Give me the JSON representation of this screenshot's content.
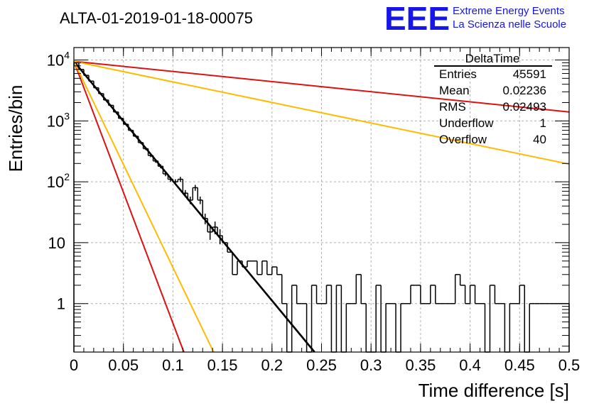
{
  "chart_data": {
    "type": "histogram",
    "title": "ALTA-01-2019-01-18-00075",
    "xlabel": "Time difference [s]",
    "ylabel": "Entries/bin",
    "xlim": [
      0,
      0.5
    ],
    "ylim": [
      0.16,
      16000
    ],
    "yscale": "log",
    "grid": true,
    "x_ticks": [
      {
        "value": 0,
        "label": "0"
      },
      {
        "value": 0.05,
        "label": "0.05"
      },
      {
        "value": 0.1,
        "label": "0.1"
      },
      {
        "value": 0.15,
        "label": "0.15"
      },
      {
        "value": 0.2,
        "label": "0.2"
      },
      {
        "value": 0.25,
        "label": "0.25"
      },
      {
        "value": 0.3,
        "label": "0.3"
      },
      {
        "value": 0.35,
        "label": "0.35"
      },
      {
        "value": 0.4,
        "label": "0.4"
      },
      {
        "value": 0.45,
        "label": "0.45"
      },
      {
        "value": 0.5,
        "label": "0.5"
      }
    ],
    "y_ticks": [
      {
        "value": 1,
        "base": "1",
        "exp": ""
      },
      {
        "value": 10,
        "base": "10",
        "exp": ""
      },
      {
        "value": 100,
        "base": "10",
        "exp": "2"
      },
      {
        "value": 1000,
        "base": "10",
        "exp": "3"
      },
      {
        "value": 10000,
        "base": "10",
        "exp": "4"
      }
    ],
    "histogram": {
      "bin_width": 0.005,
      "x_start": 0,
      "counts": [
        9000,
        7000,
        5600,
        4500,
        3500,
        2800,
        2200,
        1800,
        1400,
        1100,
        880,
        700,
        560,
        440,
        350,
        270,
        220,
        180,
        135,
        110,
        100,
        110,
        65,
        50,
        80,
        50,
        25,
        15,
        18,
        13,
        10,
        7,
        3,
        5,
        4,
        5,
        5,
        3,
        5,
        3,
        4,
        3,
        1,
        0,
        2,
        1,
        1,
        0,
        2,
        1,
        1,
        2,
        0,
        2,
        0,
        1,
        1,
        3,
        1,
        0,
        0,
        2,
        0,
        1,
        1,
        0,
        1,
        1,
        2,
        2,
        1,
        1,
        2,
        1,
        1,
        1,
        1,
        3,
        2,
        1,
        2,
        1,
        1,
        0,
        2,
        1,
        1,
        0,
        1,
        1,
        2,
        0,
        1,
        1,
        1,
        1,
        1,
        1,
        1,
        1
      ],
      "color": "#000000"
    },
    "fits": [
      {
        "type": "exponential",
        "n0": 9500,
        "x_at_floor": 0.243,
        "floor": 0.16,
        "color": "#000000",
        "width": 2.6
      },
      {
        "type": "exponential",
        "n0": 9500,
        "x_at_floor": 0.111,
        "floor": 0.16,
        "color": "#dd1111",
        "width": 2
      },
      {
        "type": "exponential",
        "n0": 9500,
        "x_at_floor": 0.141,
        "floor": 0.16,
        "color": "#ffbb00",
        "width": 2
      },
      {
        "type": "exponential",
        "n0": 9500,
        "y_at_max": 1400,
        "x_max": 0.5,
        "color": "#dd1111",
        "width": 2
      },
      {
        "type": "exponential",
        "n0": 9500,
        "y_at_max": 195,
        "x_max": 0.5,
        "color": "#ffbb00",
        "width": 2
      }
    ]
  },
  "stats_box": {
    "title": "DeltaTime",
    "rows": [
      {
        "label": "Entries",
        "value": "45591"
      },
      {
        "label": "Mean",
        "value": "0.02236"
      },
      {
        "label": "RMS",
        "value": "0.02493"
      },
      {
        "label": "Underflow",
        "value": "1"
      },
      {
        "label": "Overflow",
        "value": "40"
      }
    ]
  },
  "logo": {
    "mark": "EEE",
    "line1": "Extreme Energy Events",
    "line2": "La Scienza nelle Scuole",
    "color": "#1616e8"
  }
}
